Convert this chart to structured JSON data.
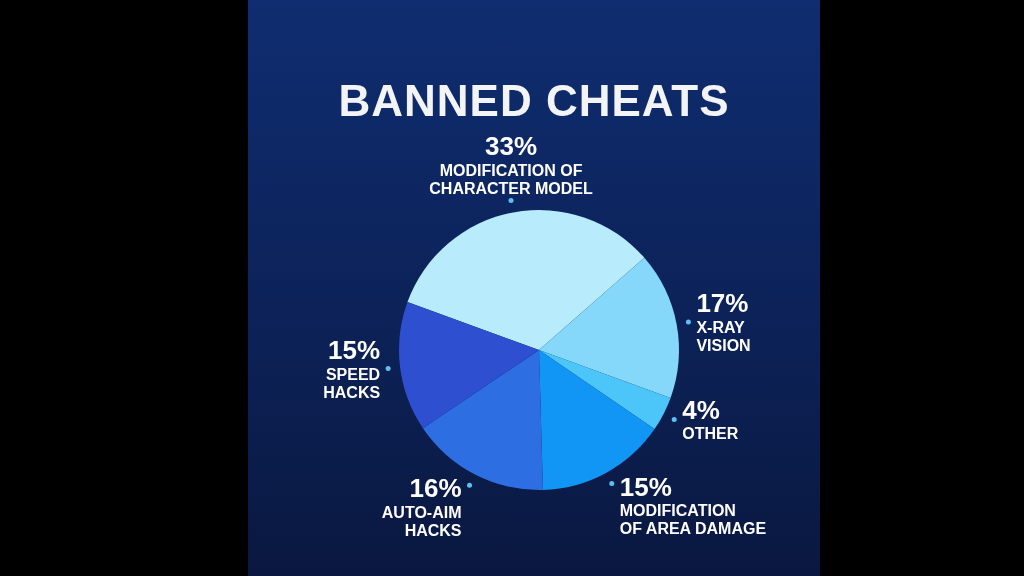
{
  "chart_data": {
    "type": "pie",
    "title": "BANNED CHEATS",
    "categories": [
      "MODIFICATION OF CHARACTER MODEL",
      "X-RAY VISION",
      "OTHER",
      "MODIFICATION OF AREA DAMAGE",
      "AUTO-AIM HACKS",
      "SPEED HACKS"
    ],
    "values": [
      33,
      17,
      4,
      15,
      16,
      15
    ],
    "colors": [
      "#b8ecfd",
      "#86d8fb",
      "#4cc6f8",
      "#1296f5",
      "#2d6fe3",
      "#2e4fcf"
    ],
    "value_labels": [
      "33%",
      "17%",
      "4%",
      "15%",
      "16%",
      "15%"
    ]
  }
}
